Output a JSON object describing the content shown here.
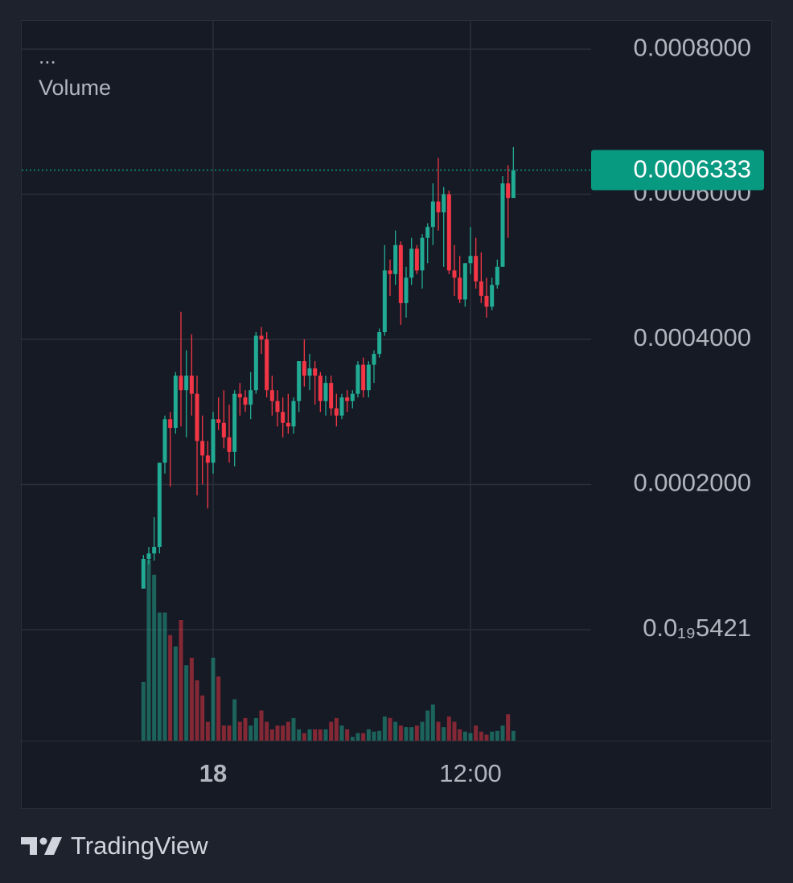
{
  "chart_data": {
    "type": "candlestick",
    "legend_text": "...",
    "volume_label": "Volume",
    "up_color": "#22ab94",
    "down_color": "#f23645",
    "grid": true,
    "x": [
      -3.25,
      -3,
      -2.75,
      -2.5,
      -2.25,
      -2,
      -1.75,
      -1.5,
      -1.25,
      -1,
      -0.75,
      -0.5,
      -0.25,
      0,
      0.25,
      0.5,
      0.75,
      1,
      1.25,
      1.5,
      1.75,
      2,
      2.25,
      2.5,
      2.75,
      3,
      3.25,
      3.5,
      3.75,
      4,
      4.25,
      4.5,
      4.75,
      5,
      5.25,
      5.5,
      5.75,
      6,
      6.25,
      6.5,
      6.75,
      7,
      7.25,
      7.5,
      7.75,
      8,
      8.25,
      8.5,
      8.75,
      9,
      9.25,
      9.5,
      9.75,
      10,
      10.25,
      10.5,
      10.75,
      11,
      11.25,
      11.5,
      11.75,
      12,
      12.25,
      12.5,
      12.75,
      13,
      13.25,
      13.5,
      13.75,
      14
    ],
    "open": [
      5.65e-05,
      9.75e-05,
      0.000105,
      0.000114,
      0.00023,
      0.00029,
      0.000278,
      0.00035,
      0.00033,
      0.00035,
      0.000325,
      0.00026,
      0.00024,
      0.00023,
      0.00029,
      0.000285,
      0.000265,
      0.000245,
      0.000325,
      0.00032,
      0.00031,
      0.00033,
      0.000405,
      0.0004,
      0.00033,
      0.000315,
      0.0003,
      0.000285,
      0.00028,
      0.000315,
      0.00037,
      0.00035,
      0.00036,
      0.00035,
      0.000315,
      0.00034,
      0.000305,
      0.000295,
      0.00032,
      0.000315,
      0.000325,
      0.000365,
      0.00033,
      0.000365,
      0.00038,
      0.00041,
      0.000495,
      0.00049,
      0.00053,
      0.00045,
      0.000485,
      0.000525,
      0.000495,
      0.00054,
      0.000555,
      0.00059,
      0.000575,
      0.0006,
      0.000495,
      0.000485,
      0.000455,
      0.000505,
      0.000515,
      0.00048,
      0.00046,
      0.000445,
      0.000475,
      0.0005,
      0.000615,
      0.000595
    ],
    "high": [
      0.000103,
      0.000114,
      0.000155,
      0.00023,
      0.000295,
      0.0003,
      0.000355,
      0.000438,
      0.000385,
      0.000407,
      0.00035,
      0.000295,
      0.00026,
      0.0003,
      0.00032,
      0.00033,
      0.00031,
      0.00033,
      0.00034,
      0.00033,
      0.000355,
      0.00041,
      0.000417,
      0.00041,
      0.00035,
      0.00033,
      0.00032,
      0.000325,
      0.00032,
      0.00037,
      0.0004,
      0.00038,
      0.00037,
      0.000355,
      0.00035,
      0.00035,
      0.000325,
      0.000325,
      0.00033,
      0.00033,
      0.00037,
      0.000375,
      0.00037,
      0.000385,
      0.000415,
      0.00053,
      0.00051,
      0.00055,
      0.000535,
      0.0005,
      0.00054,
      0.00053,
      0.000545,
      0.00056,
      0.000615,
      0.00065,
      0.00061,
      0.000605,
      0.00053,
      0.000515,
      0.000505,
      0.000555,
      0.00054,
      0.00052,
      0.000485,
      0.000485,
      0.00051,
      0.000625,
      0.00064,
      0.000665
    ],
    "low": [
      5.65e-05,
      9e-05,
      9.5e-05,
      0.000105,
      0.000215,
      0.000197,
      0.00027,
      0.00028,
      0.000265,
      0.000295,
      0.000185,
      0.0002,
      0.000167,
      0.000215,
      0.000275,
      0.00025,
      0.00023,
      0.000225,
      0.000295,
      0.0003,
      0.00029,
      0.000325,
      0.00038,
      0.00032,
      0.000295,
      0.00028,
      0.000265,
      0.00027,
      0.00027,
      0.0003,
      0.000335,
      0.00033,
      0.00031,
      0.0003,
      0.000295,
      0.000295,
      0.00028,
      0.00029,
      0.0003,
      0.000305,
      0.00032,
      0.00032,
      0.00032,
      0.00034,
      0.000375,
      0.000405,
      0.00046,
      0.000475,
      0.00042,
      0.00043,
      0.000475,
      0.00049,
      0.00047,
      0.000505,
      0.00053,
      0.00055,
      0.0005,
      0.00049,
      0.00046,
      0.00045,
      0.000445,
      0.00049,
      0.00047,
      0.00045,
      0.00043,
      0.00044,
      0.00047,
      0.0005,
      0.00054,
      0.000595
    ],
    "close": [
      9.75e-05,
      0.000105,
      0.000114,
      0.00023,
      0.00029,
      0.000278,
      0.00035,
      0.00033,
      0.00035,
      0.000325,
      0.00026,
      0.00024,
      0.00023,
      0.00029,
      0.000285,
      0.000265,
      0.000245,
      0.000325,
      0.00032,
      0.00031,
      0.00033,
      0.000405,
      0.0004,
      0.00033,
      0.000315,
      0.0003,
      0.000285,
      0.00028,
      0.000315,
      0.00037,
      0.00035,
      0.00036,
      0.00035,
      0.000315,
      0.00034,
      0.000305,
      0.000295,
      0.00032,
      0.000315,
      0.000325,
      0.000365,
      0.00033,
      0.000365,
      0.00038,
      0.00041,
      0.000495,
      0.00049,
      0.00053,
      0.00045,
      0.000485,
      0.000525,
      0.000495,
      0.00054,
      0.000555,
      0.00059,
      0.000575,
      0.0006,
      0.000495,
      0.000485,
      0.000455,
      0.000505,
      0.000515,
      0.00048,
      0.00046,
      0.000445,
      0.000475,
      0.0005,
      0.000615,
      0.000595,
      0.0006333
    ],
    "volume": [
      78,
      240,
      220,
      170,
      170,
      140,
      125,
      160,
      100,
      110,
      80,
      60,
      25,
      110,
      85,
      20,
      20,
      55,
      25,
      30,
      20,
      30,
      40,
      25,
      15,
      20,
      20,
      25,
      30,
      15,
      10,
      15,
      15,
      15,
      15,
      25,
      30,
      20,
      15,
      5,
      10,
      10,
      15,
      12,
      13,
      32,
      30,
      25,
      20,
      18,
      18,
      20,
      25,
      40,
      48,
      25,
      18,
      32,
      25,
      15,
      12,
      10,
      20,
      12,
      8,
      12,
      13,
      20,
      35,
      13
    ],
    "last_price": 0.0006333,
    "last_price_color": "#089981",
    "xlim": [
      -8.925,
      17.625
    ],
    "xticks": [
      {
        "value": 0,
        "label": "18"
      },
      {
        "value": 12,
        "label": "12:00"
      }
    ],
    "ylim": [
      -0.000153,
      0.00084
    ],
    "yticks": [
      {
        "value": 0.0008,
        "label": "0.0008000"
      },
      {
        "value": 0.0006,
        "label": "0.0006000"
      },
      {
        "value": 0.0004,
        "label": "0.0004000"
      },
      {
        "value": 0.0002,
        "label": "0.0002000"
      },
      {
        "value": 5.421e-20,
        "label": "0.0₁₉5421"
      }
    ]
  },
  "footer": {
    "brand": "TradingView"
  }
}
